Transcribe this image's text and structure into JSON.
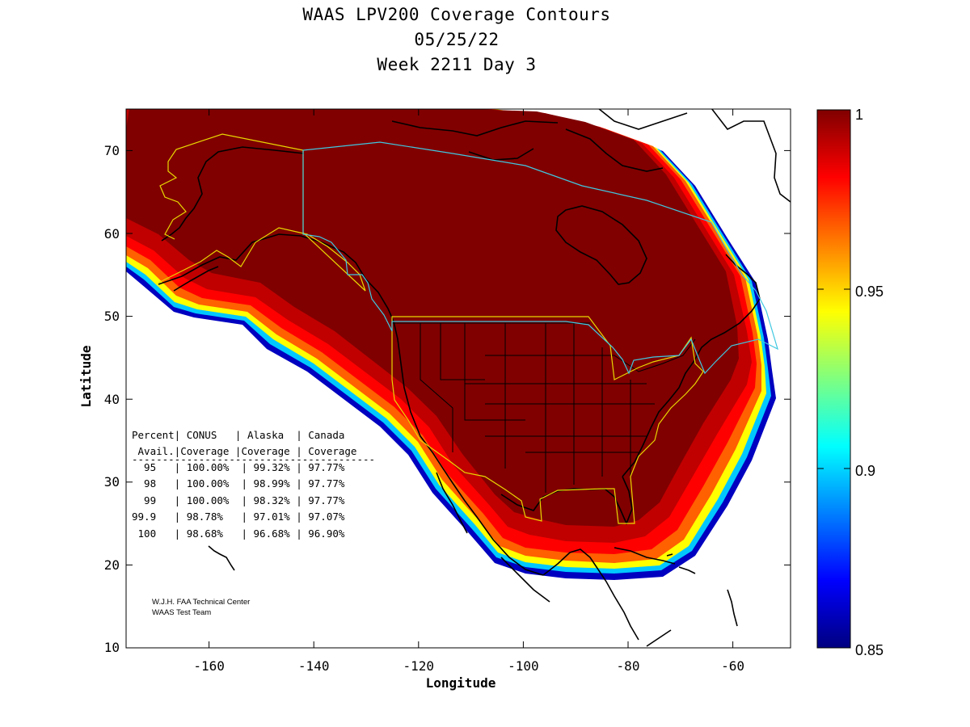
{
  "title": {
    "line1": "WAAS LPV200 Coverage Contours",
    "line2": "05/25/22",
    "line3": "Week 2211 Day 3"
  },
  "axes": {
    "xlabel": "Longitude",
    "ylabel": "Latitude",
    "xlim": [
      -175,
      -50
    ],
    "ylim": [
      10,
      75
    ],
    "xticks": [
      "-160",
      "-140",
      "-120",
      "-100",
      "-80",
      "-60"
    ],
    "yticks": [
      "10",
      "20",
      "30",
      "40",
      "50",
      "60",
      "70"
    ]
  },
  "colorbar": {
    "ticks": [
      "1",
      "0.95",
      "0.9",
      "0.85"
    ],
    "range": [
      0.85,
      1
    ],
    "colormap": "jet"
  },
  "table": {
    "header1": "Percent| CONUS   | Alaska  | Canada",
    "header2": " Avail.|Coverage |Coverage | Coverage",
    "rule": "----------------------------------------",
    "rows": [
      "  95   | 100.00%  | 99.32% | 97.77%",
      "  98   | 100.00%  | 98.99% | 97.77%",
      "  99   | 100.00%  | 98.32% | 97.77%",
      "99.9   | 98.78%   | 97.01% | 97.07%",
      " 100   | 98.68%   | 96.68% | 96.90%"
    ]
  },
  "credit": {
    "line1": "W.J.H. FAA Technical Center",
    "line2": "WAAS Test Team"
  },
  "colors": {
    "full_coverage": "#800000",
    "conus_outline": "#e8d800",
    "canada_outline": "#40c8e0"
  }
}
